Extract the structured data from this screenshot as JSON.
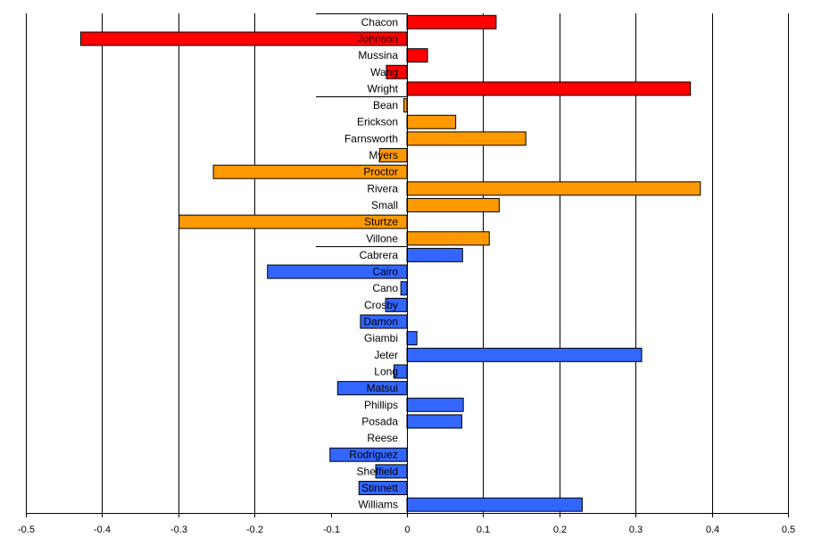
{
  "chart_data": {
    "type": "bar",
    "orientation": "horizontal",
    "xlim": [
      -0.5,
      0.5
    ],
    "x_ticks": [
      "-0.5",
      "-0.4",
      "-0.3",
      "-0.2",
      "-0.1",
      "0",
      "0.1",
      "0.2",
      "0.3",
      "0.4",
      "0.5"
    ],
    "grid": "vertical",
    "title": "",
    "xlabel": "",
    "ylabel": "",
    "colors": {
      "group1": "#ff0000",
      "group2": "#ff9900",
      "group3": "#3366ff"
    },
    "groups": [
      {
        "color": "#ff0000",
        "categories": [
          "Chacon",
          "Johnson",
          "Mussina",
          "Wang",
          "Wright"
        ],
        "values": [
          0.117,
          -0.428,
          0.027,
          -0.027,
          0.372
        ]
      },
      {
        "color": "#ff9900",
        "categories": [
          "Bean",
          "Erickson",
          "Farnsworth",
          "Myers",
          "Proctor",
          "Rivera",
          "Small",
          "Sturtze",
          "Villone"
        ],
        "values": [
          -0.004,
          0.064,
          0.156,
          -0.036,
          -0.254,
          0.385,
          0.121,
          -0.299,
          0.108
        ]
      },
      {
        "color": "#3366ff",
        "categories": [
          "Cabrera",
          "Cairo",
          "Cano",
          "Crosby",
          "Damon",
          "Giambi",
          "Jeter",
          "Long",
          "Matsui",
          "Phillips",
          "Posada",
          "Reese",
          "Rodriguez",
          "Sheffield",
          "Stinnett",
          "Williams"
        ],
        "values": [
          0.073,
          -0.183,
          -0.008,
          -0.028,
          -0.061,
          0.013,
          0.308,
          -0.017,
          -0.091,
          0.074,
          0.072,
          0.0,
          -0.101,
          -0.041,
          -0.063,
          0.23
        ]
      }
    ]
  }
}
